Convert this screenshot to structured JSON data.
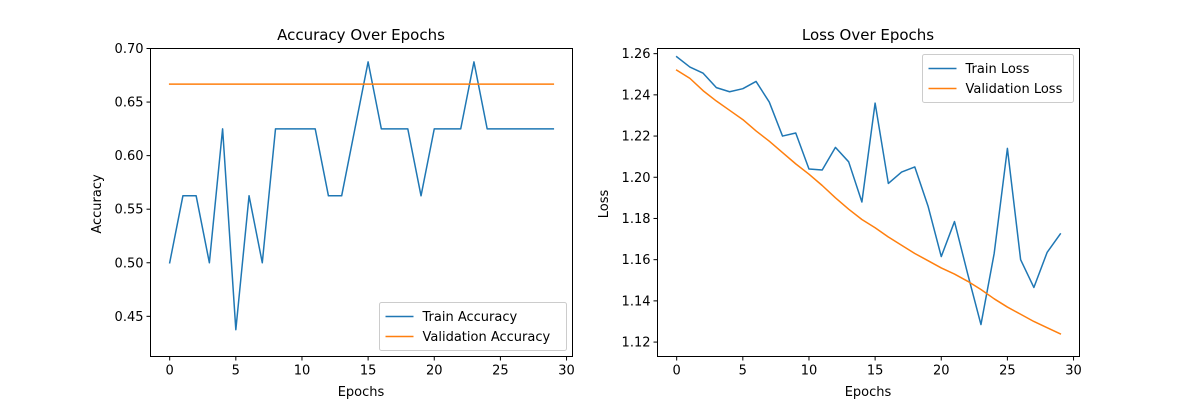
{
  "chart_data": [
    {
      "type": "line",
      "title": "Accuracy Over Epochs",
      "xlabel": "Epochs",
      "ylabel": "Accuracy",
      "xlim": [
        -1.45,
        30.45
      ],
      "ylim": [
        0.4125,
        0.7
      ],
      "xticks": [
        0,
        5,
        10,
        15,
        20,
        25,
        30
      ],
      "xtick_labels": [
        "0",
        "5",
        "10",
        "15",
        "20",
        "25",
        "30"
      ],
      "yticks": [
        0.45,
        0.5,
        0.55,
        0.6,
        0.65,
        0.7
      ],
      "ytick_labels": [
        "0.45",
        "0.50",
        "0.55",
        "0.60",
        "0.65",
        "0.70"
      ],
      "grid": false,
      "legend_position": "lower-right",
      "x": [
        0,
        1,
        2,
        3,
        4,
        5,
        6,
        7,
        8,
        9,
        10,
        11,
        12,
        13,
        14,
        15,
        16,
        17,
        18,
        19,
        20,
        21,
        22,
        23,
        24,
        25,
        26,
        27,
        28,
        29
      ],
      "series": [
        {
          "name": "Train Accuracy",
          "color": "#1f77b4",
          "values": [
            0.5,
            0.5625,
            0.5625,
            0.5,
            0.625,
            0.4375,
            0.5625,
            0.5,
            0.625,
            0.625,
            0.625,
            0.625,
            0.5625,
            0.5625,
            0.625,
            0.6875,
            0.625,
            0.625,
            0.625,
            0.5625,
            0.625,
            0.625,
            0.625,
            0.6875,
            0.625,
            0.625,
            0.625,
            0.625,
            0.625,
            0.625
          ]
        },
        {
          "name": "Validation Accuracy",
          "color": "#ff7f0e",
          "values": [
            0.6667,
            0.6667,
            0.6667,
            0.6667,
            0.6667,
            0.6667,
            0.6667,
            0.6667,
            0.6667,
            0.6667,
            0.6667,
            0.6667,
            0.6667,
            0.6667,
            0.6667,
            0.6667,
            0.6667,
            0.6667,
            0.6667,
            0.6667,
            0.6667,
            0.6667,
            0.6667,
            0.6667,
            0.6667,
            0.6667,
            0.6667,
            0.6667,
            0.6667,
            0.6667
          ]
        }
      ]
    },
    {
      "type": "line",
      "title": "Loss Over Epochs",
      "xlabel": "Epochs",
      "ylabel": "Loss",
      "xlim": [
        -1.45,
        30.45
      ],
      "ylim": [
        1.113,
        1.2625
      ],
      "xticks": [
        0,
        5,
        10,
        15,
        20,
        25,
        30
      ],
      "xtick_labels": [
        "0",
        "5",
        "10",
        "15",
        "20",
        "25",
        "30"
      ],
      "yticks": [
        1.12,
        1.14,
        1.16,
        1.18,
        1.2,
        1.22,
        1.24,
        1.26
      ],
      "ytick_labels": [
        "1.12",
        "1.14",
        "1.16",
        "1.18",
        "1.20",
        "1.22",
        "1.24",
        "1.26"
      ],
      "grid": false,
      "legend_position": "upper-right",
      "x": [
        0,
        1,
        2,
        3,
        4,
        5,
        6,
        7,
        8,
        9,
        10,
        11,
        12,
        13,
        14,
        15,
        16,
        17,
        18,
        19,
        20,
        21,
        22,
        23,
        24,
        25,
        26,
        27,
        28,
        29
      ],
      "series": [
        {
          "name": "Train Loss",
          "color": "#1f77b4",
          "values": [
            1.2585,
            1.2535,
            1.2505,
            1.2435,
            1.2415,
            1.243,
            1.2465,
            1.2365,
            1.22,
            1.2215,
            1.204,
            1.2035,
            1.2145,
            1.2075,
            1.188,
            1.236,
            1.197,
            1.2025,
            1.205,
            1.186,
            1.1615,
            1.1785,
            1.153,
            1.1285,
            1.163,
            1.214,
            1.16,
            1.1465,
            1.1635,
            1.1725
          ]
        },
        {
          "name": "Validation Loss",
          "color": "#ff7f0e",
          "values": [
            1.252,
            1.248,
            1.242,
            1.237,
            1.2325,
            1.228,
            1.2225,
            1.2175,
            1.212,
            1.2065,
            1.2015,
            1.196,
            1.19,
            1.1845,
            1.1795,
            1.1755,
            1.171,
            1.167,
            1.163,
            1.1595,
            1.156,
            1.153,
            1.1495,
            1.1455,
            1.141,
            1.137,
            1.1335,
            1.13,
            1.127,
            1.124
          ]
        }
      ]
    }
  ]
}
